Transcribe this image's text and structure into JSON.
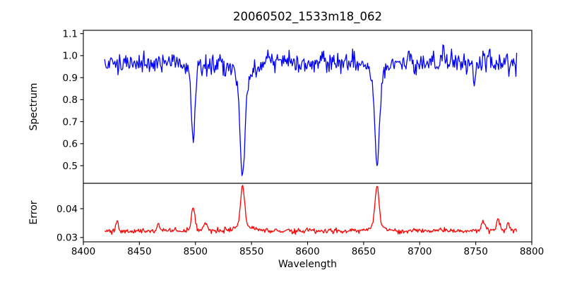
{
  "figure": {
    "background": "#ffffff",
    "axis_color": "#000000"
  },
  "chart_data": {
    "type": "line",
    "title": "20060502_1533m18_062",
    "xlabel": "Wavelength",
    "xlim": [
      8400,
      8800
    ],
    "xticks": [
      8400,
      8450,
      8500,
      8550,
      8600,
      8650,
      8700,
      8750,
      8800
    ],
    "xtick_labels": [
      "8400",
      "8450",
      "8500",
      "8550",
      "8600",
      "8650",
      "8700",
      "8750",
      "8800"
    ],
    "x_data_range": [
      8419,
      8787
    ],
    "sampling_step": 0.7,
    "grid": false,
    "legend": "none",
    "panels": [
      {
        "name": "spectrum",
        "ylabel": "Spectrum",
        "ylim": [
          0.42,
          1.115
        ],
        "yticks": [
          0.5,
          0.6,
          0.7,
          0.8,
          0.9,
          1.0,
          1.1
        ],
        "ytick_labels": [
          "0.5",
          "0.6",
          "0.7",
          "0.8",
          "0.9",
          "1.0",
          "1.1"
        ],
        "line_color": "#0000ff",
        "baseline": 0.968,
        "noise_sigma": 0.023,
        "noise_tracks_signal": true,
        "seed": 1337,
        "features": [
          {
            "center": 8498,
            "amplitude": -0.32,
            "sigma": 1.6
          },
          {
            "center": 8498,
            "amplitude": -0.035,
            "sigma": 5.0
          },
          {
            "center": 8542,
            "amplitude": -0.42,
            "sigma": 2.2
          },
          {
            "center": 8542,
            "amplitude": -0.09,
            "sigma": 7.0
          },
          {
            "center": 8662,
            "amplitude": -0.4,
            "sigma": 2.0
          },
          {
            "center": 8662,
            "amplitude": -0.07,
            "sigma": 6.0
          },
          {
            "center": 8721,
            "amplitude": 0.09,
            "sigma": 0.9
          },
          {
            "center": 8749,
            "amplitude": -0.11,
            "sigma": 1.1
          }
        ]
      },
      {
        "name": "error",
        "ylabel": "Error",
        "ylim": [
          0.0285,
          0.0488
        ],
        "yticks": [
          0.03,
          0.04
        ],
        "ytick_labels": [
          "0.03",
          "0.04"
        ],
        "line_color": "#ff0000",
        "baseline": 0.0323,
        "noise_sigma": 0.00045,
        "noise_tracks_signal": false,
        "seed": 2024,
        "features": [
          {
            "center": 8430,
            "amplitude": 0.0036,
            "sigma": 1.2
          },
          {
            "center": 8467,
            "amplitude": 0.0026,
            "sigma": 1.2
          },
          {
            "center": 8498,
            "amplitude": 0.0082,
            "sigma": 1.6
          },
          {
            "center": 8509,
            "amplitude": 0.0026,
            "sigma": 2.2
          },
          {
            "center": 8542,
            "amplitude": 0.014,
            "sigma": 1.8
          },
          {
            "center": 8542,
            "amplitude": 0.0018,
            "sigma": 7.0
          },
          {
            "center": 8662,
            "amplitude": 0.014,
            "sigma": 1.8
          },
          {
            "center": 8662,
            "amplitude": 0.0015,
            "sigma": 6.0
          },
          {
            "center": 8757,
            "amplitude": 0.0032,
            "sigma": 1.8
          },
          {
            "center": 8770,
            "amplitude": 0.0042,
            "sigma": 1.6
          },
          {
            "center": 8779,
            "amplitude": 0.0028,
            "sigma": 1.2
          }
        ]
      }
    ]
  }
}
